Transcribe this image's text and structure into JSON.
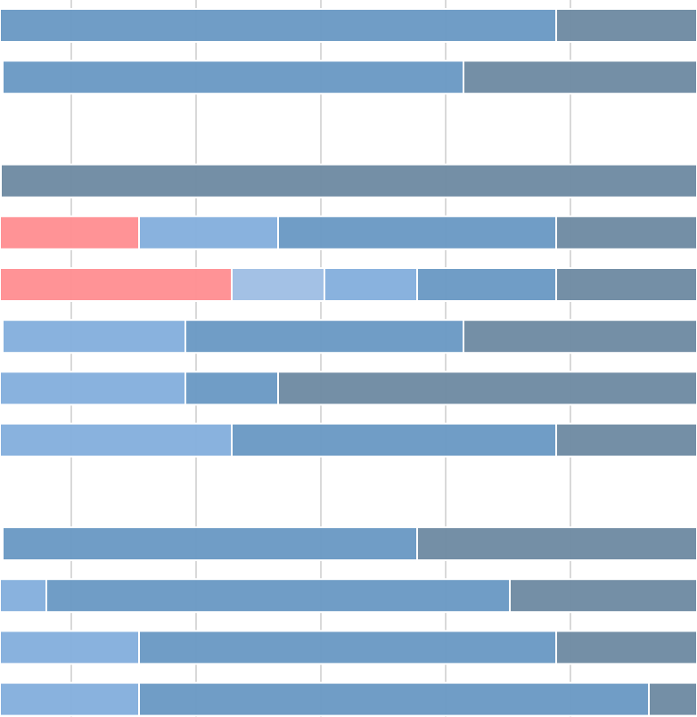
{
  "chart_data": {
    "type": "bar",
    "orientation": "horizontal",
    "stacked": true,
    "grid": true,
    "legend": "none",
    "segment_colors": {
      "red": "#ff8f93",
      "pale_blue": "#a0bfe4",
      "light_blue": "#85b0dd",
      "mid_blue": "#6b9ac4",
      "dark_slate": "#6f8ba3"
    },
    "rows": [
      {
        "segments": [
          {
            "color": "mid_blue",
            "start": 0,
            "end": 624
          },
          {
            "color": "dark_slate",
            "start": 624,
            "end": 782
          }
        ]
      },
      {
        "segments": [
          {
            "color": "mid_blue",
            "start": 3,
            "end": 520
          },
          {
            "color": "dark_slate",
            "start": 520,
            "end": 782
          }
        ]
      },
      {
        "segments": []
      },
      {
        "segments": [
          {
            "color": "dark_slate",
            "start": 1,
            "end": 782
          }
        ]
      },
      {
        "segments": [
          {
            "color": "red",
            "start": 0,
            "end": 156
          },
          {
            "color": "light_blue",
            "start": 156,
            "end": 312
          },
          {
            "color": "mid_blue",
            "start": 312,
            "end": 624
          },
          {
            "color": "dark_slate",
            "start": 624,
            "end": 782
          }
        ]
      },
      {
        "segments": [
          {
            "color": "red",
            "start": 0,
            "end": 260
          },
          {
            "color": "pale_blue",
            "start": 260,
            "end": 364
          },
          {
            "color": "light_blue",
            "start": 364,
            "end": 468
          },
          {
            "color": "mid_blue",
            "start": 468,
            "end": 624
          },
          {
            "color": "dark_slate",
            "start": 624,
            "end": 782
          }
        ]
      },
      {
        "segments": [
          {
            "color": "light_blue",
            "start": 3,
            "end": 208
          },
          {
            "color": "mid_blue",
            "start": 208,
            "end": 520
          },
          {
            "color": "dark_slate",
            "start": 520,
            "end": 782
          }
        ]
      },
      {
        "segments": [
          {
            "color": "light_blue",
            "start": 0,
            "end": 208
          },
          {
            "color": "mid_blue",
            "start": 208,
            "end": 312
          },
          {
            "color": "dark_slate",
            "start": 312,
            "end": 782
          }
        ]
      },
      {
        "segments": [
          {
            "color": "light_blue",
            "start": 0,
            "end": 260
          },
          {
            "color": "mid_blue",
            "start": 260,
            "end": 624
          },
          {
            "color": "dark_slate",
            "start": 624,
            "end": 782
          }
        ]
      },
      {
        "segments": []
      },
      {
        "segments": [
          {
            "color": "mid_blue",
            "start": 3,
            "end": 468
          },
          {
            "color": "dark_slate",
            "start": 468,
            "end": 782
          }
        ]
      },
      {
        "segments": [
          {
            "color": "light_blue",
            "start": 0,
            "end": 52
          },
          {
            "color": "mid_blue",
            "start": 52,
            "end": 572
          },
          {
            "color": "dark_slate",
            "start": 572,
            "end": 782
          }
        ]
      },
      {
        "segments": [
          {
            "color": "light_blue",
            "start": 0,
            "end": 156
          },
          {
            "color": "mid_blue",
            "start": 156,
            "end": 624
          },
          {
            "color": "dark_slate",
            "start": 624,
            "end": 782
          }
        ]
      },
      {
        "segments": [
          {
            "color": "light_blue",
            "start": 0,
            "end": 156
          },
          {
            "color": "mid_blue",
            "start": 156,
            "end": 728
          },
          {
            "color": "dark_slate",
            "start": 728,
            "end": 782
          }
        ]
      }
    ]
  }
}
